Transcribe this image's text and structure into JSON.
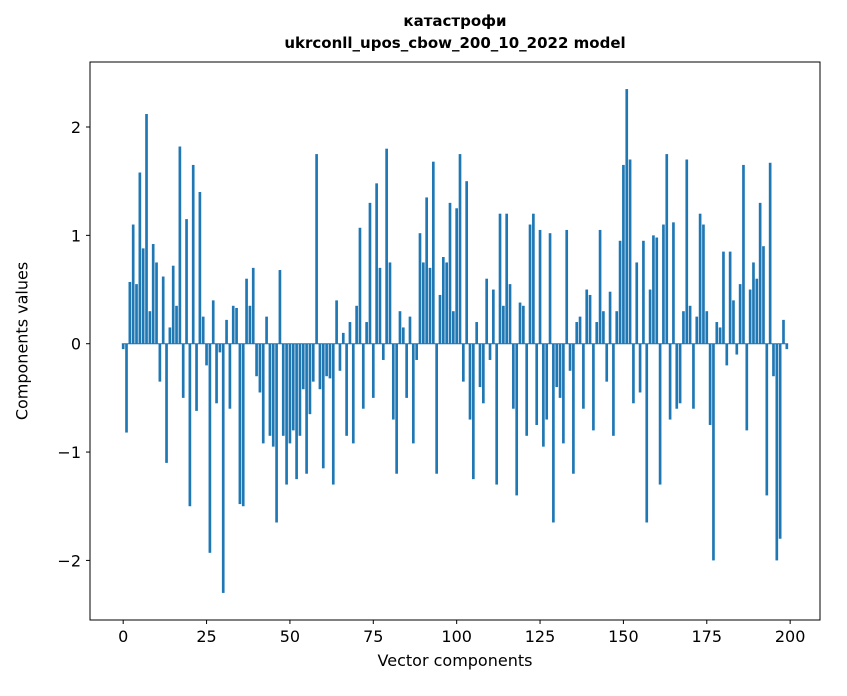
{
  "figure": {
    "title_line1": "катастрофи",
    "title_line2": "ukrconll_upos_cbow_200_10_2022 model",
    "xlabel": "Vector components",
    "ylabel": "Components values"
  },
  "chart_data": {
    "type": "bar",
    "title": "катастрофи\nukrconll_upos_cbow_200_10_2022 model",
    "xlabel": "Vector components",
    "ylabel": "Components values",
    "bar_color": "#1f77b4",
    "axis_color": "#000000",
    "legend": "none",
    "grid": false,
    "x_ticks": [
      0,
      25,
      50,
      75,
      100,
      125,
      150,
      175,
      200
    ],
    "y_tick_values": [
      -2,
      -1,
      0,
      1,
      2
    ],
    "y_tick_labels": [
      "−2",
      "−1",
      "0",
      "1",
      "2"
    ],
    "xlim": [
      -9.95,
      208.95
    ],
    "ylim": [
      -2.55,
      2.6
    ],
    "values": [
      -0.05,
      -0.82,
      0.57,
      1.1,
      0.55,
      1.58,
      0.88,
      2.12,
      0.3,
      0.92,
      0.75,
      -0.35,
      0.62,
      -1.1,
      0.15,
      0.72,
      0.35,
      1.82,
      -0.5,
      1.15,
      -1.5,
      1.65,
      -0.62,
      1.4,
      0.25,
      -0.2,
      -1.93,
      0.4,
      -0.55,
      -0.08,
      -2.3,
      0.22,
      -0.6,
      0.35,
      0.33,
      -1.48,
      -1.5,
      0.6,
      0.35,
      0.7,
      -0.3,
      -0.45,
      -0.92,
      0.25,
      -0.85,
      -0.95,
      -1.65,
      0.68,
      -0.85,
      -1.3,
      -0.92,
      -0.8,
      -1.25,
      -0.85,
      -0.42,
      -1.2,
      -0.65,
      -0.35,
      1.75,
      -0.42,
      -1.15,
      -0.3,
      -0.32,
      -1.3,
      0.4,
      -0.25,
      0.1,
      -0.85,
      0.2,
      -0.92,
      0.35,
      1.07,
      -0.6,
      0.2,
      1.3,
      -0.5,
      1.48,
      0.7,
      -0.15,
      1.8,
      0.75,
      -0.7,
      -1.2,
      0.3,
      0.15,
      -0.5,
      0.25,
      -0.92,
      -0.15,
      1.02,
      0.75,
      1.35,
      0.7,
      1.68,
      -1.2,
      0.45,
      0.8,
      0.75,
      1.3,
      0.3,
      1.25,
      1.75,
      -0.35,
      1.5,
      -0.7,
      -1.25,
      0.2,
      -0.4,
      -0.55,
      0.6,
      -0.15,
      0.5,
      -1.3,
      1.2,
      0.35,
      1.2,
      0.55,
      -0.6,
      -1.4,
      0.38,
      0.35,
      -0.85,
      1.1,
      1.2,
      -0.75,
      1.05,
      -0.95,
      -0.7,
      1.02,
      -1.65,
      -0.4,
      -0.5,
      -0.92,
      1.05,
      -0.25,
      -1.2,
      0.2,
      0.25,
      -0.6,
      0.5,
      0.45,
      -0.8,
      0.2,
      1.05,
      0.3,
      -0.35,
      0.48,
      -0.85,
      0.3,
      0.95,
      1.65,
      2.35,
      1.7,
      -0.55,
      0.75,
      -0.45,
      0.95,
      -1.65,
      0.5,
      1.0,
      0.98,
      -1.3,
      1.1,
      1.75,
      -0.7,
      1.12,
      -0.6,
      -0.55,
      0.3,
      1.7,
      0.35,
      -0.6,
      0.25,
      1.2,
      1.1,
      0.3,
      -0.75,
      -2.0,
      0.2,
      0.15,
      0.85,
      -0.2,
      0.85,
      0.4,
      -0.1,
      0.55,
      1.65,
      -0.8,
      0.5,
      0.75,
      0.6,
      1.3,
      0.9,
      -1.4,
      1.67,
      -0.3,
      -2.0,
      -1.8,
      0.22,
      -0.05
    ]
  }
}
